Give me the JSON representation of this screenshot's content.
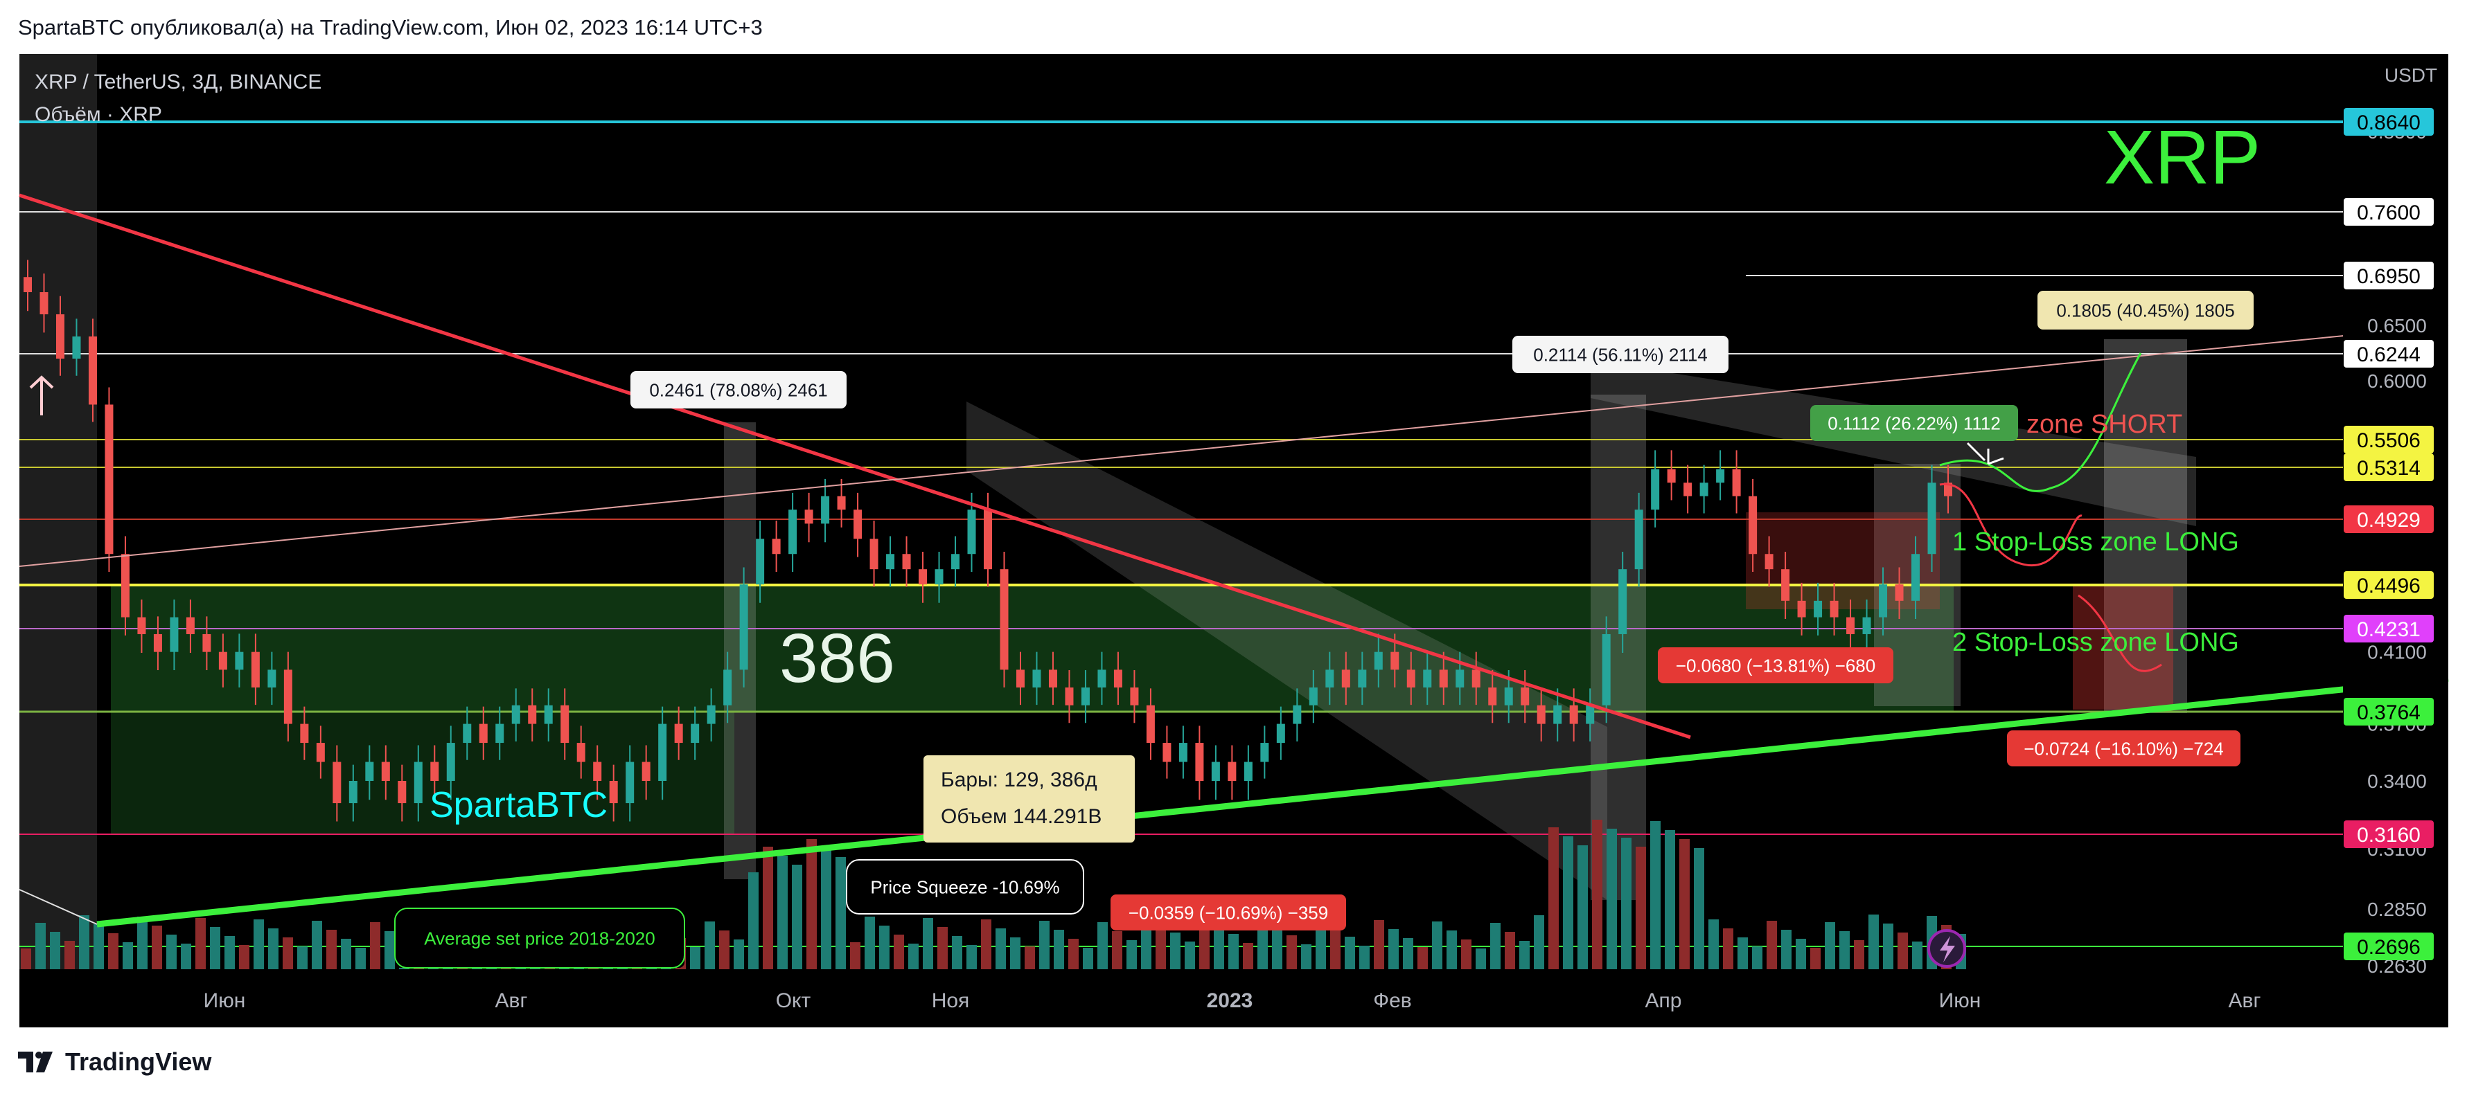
{
  "header": {
    "text": "SpartaBTC опубликовал(а) на TradingView.com, Июн 02, 2023 16:14 UTC+3"
  },
  "footer": {
    "brand": "TradingView"
  },
  "legend": {
    "symbol": "XRP / TetherUS, 3Д, BINANCE",
    "volume": "Объём · XRP"
  },
  "colors": {
    "background": "#000000",
    "up_candle": "#26a69a",
    "down_candle": "#ef5350",
    "green_line": "#3cf03c",
    "red_line": "#f23645",
    "cyan_line": "#26c6da",
    "yellow_line": "#f4f442"
  },
  "overlays": {
    "xrp_title": "XRP",
    "spartabtc": "SpartaBTC",
    "big_number": "386",
    "zone_short": "zone SHORT",
    "sl_long_1": "1 Stop-Loss zone LONG",
    "sl_long_2": "2 Stop-Loss zone LONG",
    "avg_price": "Average set price 2018-2020",
    "price_squeeze": "Price Squeeze -10.69%",
    "bars_line1": "Бары: 129, 386д",
    "bars_line2": "Объем 144.291B",
    "measure_1": "0.2461 (78.08%) 2461",
    "measure_2": "0.2114 (56.11%) 2114",
    "measure_3": "0.1805 (40.45%) 1805",
    "measure_4": "0.1112 (26.22%) 1112",
    "measure_5": "−0.0680 (−13.81%) −680",
    "measure_6": "−0.0724 (−16.10%) −724",
    "measure_7": "−0.0359 (−10.69%) −359"
  },
  "chart_data": {
    "type": "candlestick",
    "symbol": "XRP / TetherUS",
    "interval": "3Д",
    "exchange": "BINANCE",
    "currency": "USDT",
    "x_axis_labels": [
      "Июн",
      "Авг",
      "Окт",
      "Ноя",
      "2023",
      "Фев",
      "Апр",
      "Июн",
      "Авг"
    ],
    "y_axis_ticks": [
      "0.8500",
      "0.6500",
      "0.6000",
      "0.4100",
      "0.3700",
      "0.3400",
      "0.3100",
      "0.2850",
      "0.2630"
    ],
    "price_labels": [
      {
        "value": "0.8640",
        "color": "#26c6da",
        "text_color": "#000000"
      },
      {
        "value": "0.7600",
        "color": "#ffffff",
        "text_color": "#000000"
      },
      {
        "value": "0.6950",
        "color": "#ffffff",
        "text_color": "#000000"
      },
      {
        "value": "0.6244",
        "color": "#ffffff",
        "text_color": "#000000"
      },
      {
        "value": "0.5506",
        "color": "#f4f442",
        "text_color": "#000000"
      },
      {
        "value": "0.5314",
        "color": "#f4f442",
        "text_color": "#000000"
      },
      {
        "value": "0.4929",
        "color": "#f23645",
        "text_color": "#ffffff"
      },
      {
        "value": "0.4496",
        "color": "#f4f442",
        "text_color": "#000000"
      },
      {
        "value": "0.4231",
        "color": "#e040fb",
        "text_color": "#ffffff"
      },
      {
        "value": "0.3764",
        "color": "#3cf03c",
        "text_color": "#000000"
      },
      {
        "value": "0.3160",
        "color": "#e91e63",
        "text_color": "#ffffff"
      },
      {
        "value": "0.2696",
        "color": "#3cf03c",
        "text_color": "#000000"
      }
    ],
    "approx_closes": [
      0.68,
      0.66,
      0.62,
      0.64,
      0.58,
      0.47,
      0.43,
      0.42,
      0.41,
      0.43,
      0.42,
      0.41,
      0.4,
      0.41,
      0.39,
      0.4,
      0.37,
      0.36,
      0.35,
      0.33,
      0.34,
      0.35,
      0.34,
      0.33,
      0.35,
      0.34,
      0.36,
      0.37,
      0.36,
      0.37,
      0.38,
      0.37,
      0.38,
      0.36,
      0.35,
      0.34,
      0.33,
      0.35,
      0.34,
      0.37,
      0.36,
      0.37,
      0.38,
      0.4,
      0.45,
      0.48,
      0.47,
      0.5,
      0.49,
      0.51,
      0.5,
      0.48,
      0.46,
      0.47,
      0.46,
      0.45,
      0.46,
      0.47,
      0.5,
      0.46,
      0.4,
      0.39,
      0.4,
      0.39,
      0.38,
      0.39,
      0.4,
      0.39,
      0.38,
      0.36,
      0.35,
      0.36,
      0.34,
      0.35,
      0.34,
      0.35,
      0.36,
      0.37,
      0.38,
      0.39,
      0.4,
      0.39,
      0.4,
      0.41,
      0.4,
      0.39,
      0.4,
      0.39,
      0.4,
      0.39,
      0.38,
      0.39,
      0.38,
      0.37,
      0.38,
      0.37,
      0.38,
      0.42,
      0.46,
      0.5,
      0.53,
      0.52,
      0.51,
      0.52,
      0.53,
      0.51,
      0.47,
      0.46,
      0.44,
      0.43,
      0.44,
      0.43,
      0.42,
      0.43,
      0.45,
      0.44,
      0.47,
      0.52,
      0.51
    ]
  }
}
